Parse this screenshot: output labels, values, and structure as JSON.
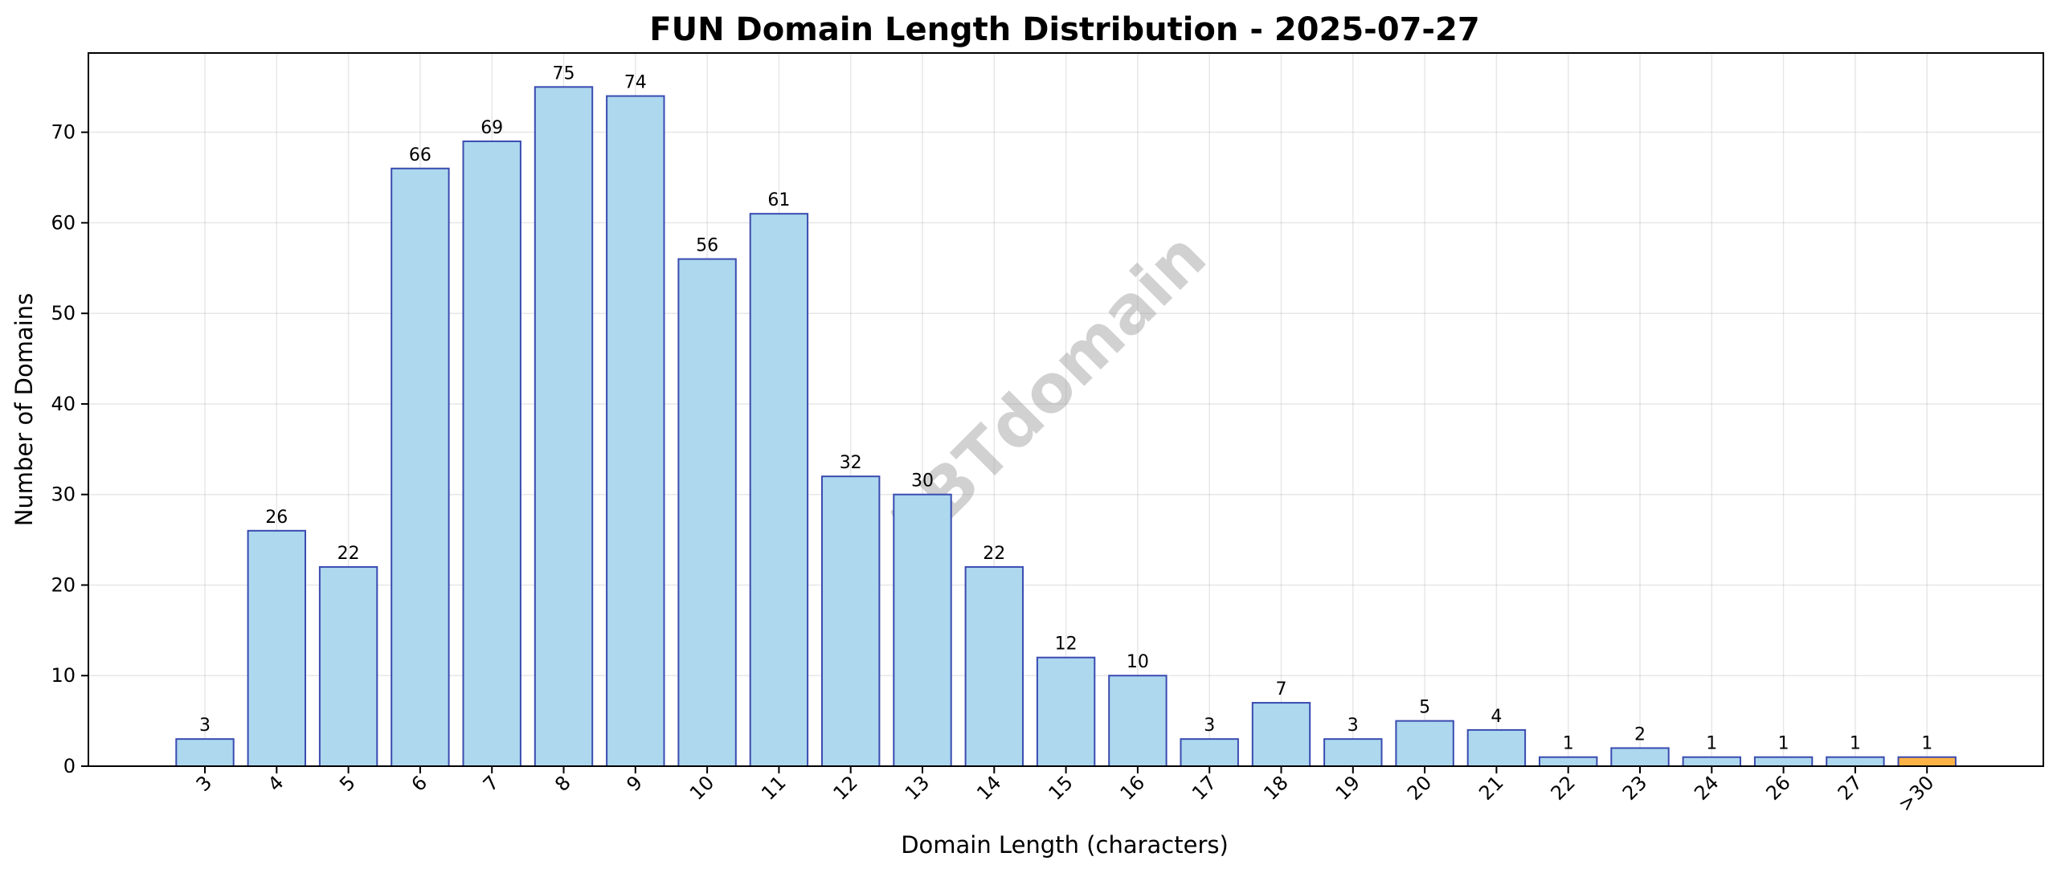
{
  "chart_data": {
    "type": "bar",
    "title": "FUN Domain Length Distribution - 2025-07-27",
    "xlabel": "Domain Length (characters)",
    "ylabel": "Number of Domains",
    "categories": [
      "3",
      "4",
      "5",
      "6",
      "7",
      "8",
      "9",
      "10",
      "11",
      "12",
      "13",
      "14",
      "15",
      "16",
      "17",
      "18",
      "19",
      "20",
      "21",
      "22",
      "23",
      "24",
      "26",
      "27",
      ">30"
    ],
    "values": [
      3,
      26,
      22,
      66,
      69,
      75,
      74,
      56,
      61,
      32,
      30,
      22,
      12,
      10,
      3,
      7,
      3,
      5,
      4,
      1,
      2,
      1,
      1,
      1,
      1
    ],
    "yticks": [
      0,
      10,
      20,
      30,
      40,
      50,
      60,
      70
    ],
    "ylim": [
      0,
      78.75
    ],
    "grid": true,
    "colors": {
      "bar_fill": "#add8ee",
      "bar_edge": "#3a4bb0",
      "highlight_fill": "#ffb347",
      "highlight_edge": "#3a4bb0"
    },
    "highlight_category": ">30",
    "watermark": "ABTdomain"
  }
}
